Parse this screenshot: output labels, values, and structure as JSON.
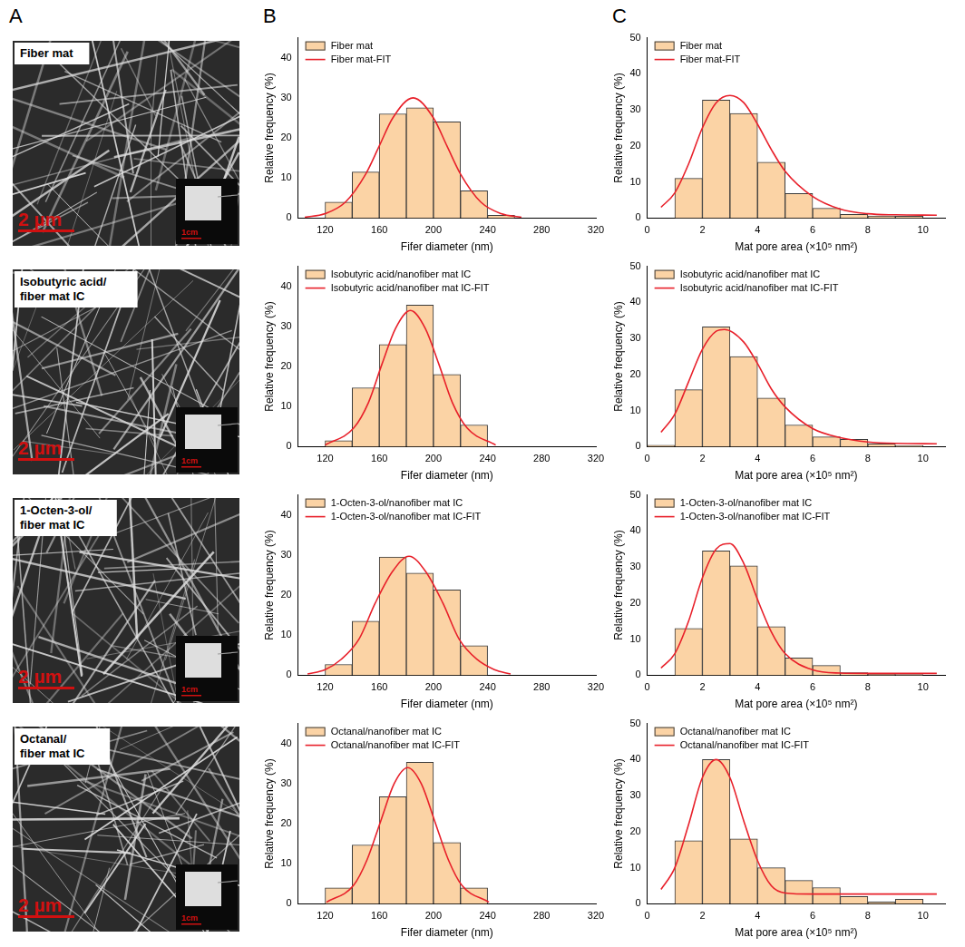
{
  "panel_letters": [
    "A",
    "B",
    "C"
  ],
  "images": [
    {
      "label": "Fiber mat",
      "scale_bar": "2 µm",
      "inset_scale_bar": "1cm"
    },
    {
      "label": "Isobutyric acid/fiber mat IC",
      "scale_bar": "2 µm",
      "inset_scale_bar": "1cm"
    },
    {
      "label": "1-Octen-3-ol/fiber mat IC",
      "scale_bar": "2 µm",
      "inset_scale_bar": "1cm"
    },
    {
      "label": "Octanal/fiber mat IC",
      "scale_bar": "2 µm",
      "inset_scale_bar": "1cm"
    }
  ],
  "chart_data": [
    {
      "type": "histogram",
      "x_label": "Fifer diameter (nm)",
      "y_label": "Relative frequency (%)",
      "bins": [
        120,
        140,
        160,
        180,
        200,
        220,
        240,
        260
      ],
      "series": [
        {
          "name": "Fiber mat",
          "type": "bar",
          "color": "#fbd3a5",
          "values": [
            4,
            11.5,
            26,
            27.5,
            24,
            6.8,
            0.7
          ]
        },
        {
          "name": "Fiber mat-FIT",
          "type": "line",
          "color": "#e8202a",
          "x": [
            105,
            120,
            135,
            150,
            160,
            170,
            185,
            200,
            210,
            220,
            235,
            250,
            265
          ],
          "values": [
            0.2,
            1.1,
            4,
            11,
            18,
            25,
            30,
            25,
            18,
            11,
            4,
            1.1,
            0.2
          ]
        }
      ],
      "xlim": [
        100,
        320
      ],
      "xticks": [
        120,
        160,
        200,
        240,
        280,
        320
      ],
      "ylim": [
        0,
        45
      ],
      "yticks": [
        0,
        10,
        20,
        30,
        40
      ],
      "grid": false,
      "legend": "top-left"
    },
    {
      "type": "histogram",
      "x_label": "Mat pore area (×10⁵ nm²)",
      "y_label": "Relative frequency (%)",
      "bins": [
        1,
        2,
        3,
        4,
        5,
        6,
        7,
        8,
        9,
        10
      ],
      "series": [
        {
          "name": "Fiber mat",
          "type": "bar",
          "color": "#fbd3a5",
          "values": [
            11,
            32.7,
            29,
            15.5,
            6.8,
            2.7,
            1,
            0.6,
            0.5
          ]
        },
        {
          "name": "Fiber mat-FIT",
          "type": "line",
          "color": "#e8202a",
          "x": [
            0.5,
            1,
            1.5,
            2,
            2.5,
            3,
            3.5,
            4,
            4.5,
            5,
            6,
            7,
            8,
            9,
            10.5
          ],
          "values": [
            3,
            7,
            15,
            25,
            32,
            34,
            32,
            26,
            19,
            13,
            6,
            2.5,
            1.2,
            0.9,
            0.8
          ]
        }
      ],
      "xlim": [
        0,
        10.8
      ],
      "xticks": [
        0,
        2,
        4,
        6,
        8,
        10
      ],
      "ylim": [
        0,
        50
      ],
      "yticks": [
        0,
        10,
        20,
        30,
        40,
        50
      ],
      "grid": false,
      "legend": "top-left"
    },
    {
      "type": "histogram",
      "x_label": "Fifer diameter (nm)",
      "y_label": "Relative frequency (%)",
      "bins": [
        120,
        140,
        160,
        180,
        200,
        220,
        240
      ],
      "series": [
        {
          "name": "Isobutyric acid/nanofiber mat IC",
          "type": "bar",
          "color": "#fbd3a5",
          "values": [
            1.5,
            14.7,
            25.5,
            35.3,
            18,
            5.4
          ]
        },
        {
          "name": "Isobutyric acid/nanofiber mat IC-FIT",
          "type": "line",
          "color": "#e8202a",
          "x": [
            120,
            141,
            152,
            162,
            172,
            183,
            194,
            204,
            214,
            225,
            246
          ],
          "values": [
            0.4,
            4.6,
            11,
            20.6,
            29.5,
            34,
            29.5,
            20.6,
            11,
            4.6,
            0.4
          ]
        }
      ],
      "xlim": [
        100,
        320
      ],
      "xticks": [
        120,
        160,
        200,
        240,
        280,
        320
      ],
      "ylim": [
        0,
        45
      ],
      "yticks": [
        0,
        10,
        20,
        30,
        40
      ],
      "grid": false,
      "legend": "top-left"
    },
    {
      "type": "histogram",
      "x_label": "Mat pore area (×10⁵ nm²)",
      "y_label": "Relative frequency (%)",
      "bins": [
        0,
        1,
        2,
        3,
        4,
        5,
        6,
        7,
        8,
        9,
        10
      ],
      "series": [
        {
          "name": "Isobutyric acid/nanofiber mat IC",
          "type": "bar",
          "color": "#fbd3a5",
          "values": [
            0.4,
            15.8,
            33.2,
            25,
            13.5,
            6,
            2.7,
            2,
            0.8,
            0.3
          ]
        },
        {
          "name": "Isobutyric acid/nanofiber mat IC-FIT",
          "type": "line",
          "color": "#e8202a",
          "x": [
            0.5,
            1,
            1.5,
            2,
            2.5,
            2.8,
            3.5,
            4,
            4.5,
            5,
            6,
            7,
            8,
            9,
            10.5
          ],
          "values": [
            4,
            9,
            18,
            27,
            32,
            32.5,
            29,
            23,
            16,
            11,
            5,
            2.5,
            1.3,
            0.9,
            0.8
          ]
        }
      ],
      "xlim": [
        0,
        10.8
      ],
      "xticks": [
        0,
        2,
        4,
        6,
        8,
        10
      ],
      "ylim": [
        0,
        50
      ],
      "yticks": [
        0,
        10,
        20,
        30,
        40,
        50
      ],
      "grid": false,
      "legend": "top-left"
    },
    {
      "type": "histogram",
      "x_label": "Fifer diameter (nm)",
      "y_label": "Relative frequency (%)",
      "bins": [
        120,
        140,
        160,
        180,
        200,
        220,
        240
      ],
      "series": [
        {
          "name": "1-Octen-3-ol/nanofiber mat IC",
          "type": "bar",
          "color": "#fbd3a5",
          "values": [
            2.7,
            13.5,
            29.5,
            25.5,
            21.3,
            7.4
          ]
        },
        {
          "name": "1-Octen-3-ol/nanofiber mat IC-FIT",
          "type": "line",
          "color": "#e8202a",
          "x": [
            107,
            120,
            132,
            145,
            157,
            170,
            182,
            194,
            207,
            219,
            232,
            245,
            257
          ],
          "values": [
            0.3,
            1.4,
            4,
            9,
            18,
            26,
            29.7,
            26,
            18,
            9,
            4,
            1.4,
            0.3
          ]
        }
      ],
      "xlim": [
        100,
        320
      ],
      "xticks": [
        120,
        160,
        200,
        240,
        280,
        320
      ],
      "ylim": [
        0,
        45
      ],
      "yticks": [
        0,
        10,
        20,
        30,
        40
      ],
      "grid": false,
      "legend": "top-left"
    },
    {
      "type": "histogram",
      "x_label": "Mat pore area (×10⁵ nm²)",
      "y_label": "Relative frequency (%)",
      "bins": [
        1,
        2,
        3,
        4,
        5,
        6,
        7,
        8,
        9,
        10
      ],
      "series": [
        {
          "name": "1-Octen-3-ol/nanofiber mat IC",
          "type": "bar",
          "color": "#fbd3a5",
          "values": [
            13,
            34.5,
            30.3,
            13.5,
            4.8,
            2.7,
            0.7,
            0.3,
            0.2
          ]
        },
        {
          "name": "1-Octen-3-ol/nanofiber mat IC-FIT",
          "type": "line",
          "color": "#e8202a",
          "x": [
            0.5,
            1,
            1.5,
            2,
            2.5,
            3,
            3.5,
            4,
            4.5,
            5,
            6,
            7,
            8,
            10.5
          ],
          "values": [
            2,
            6,
            15,
            27,
            35,
            36.5,
            31,
            21,
            12,
            6,
            1.5,
            0.6,
            0.5,
            0.5
          ]
        }
      ],
      "xlim": [
        0,
        10.8
      ],
      "xticks": [
        0,
        2,
        4,
        6,
        8,
        10
      ],
      "ylim": [
        0,
        50
      ],
      "yticks": [
        0,
        10,
        20,
        30,
        40,
        50
      ],
      "grid": false,
      "legend": "top-left"
    },
    {
      "type": "histogram",
      "x_label": "Fifer diameter (nm)",
      "y_label": "Relative frequency (%)",
      "bins": [
        120,
        140,
        160,
        180,
        200,
        220,
        240
      ],
      "series": [
        {
          "name": "Octanal/nanofiber mat IC",
          "type": "bar",
          "color": "#fbd3a5",
          "values": [
            4,
            14.7,
            26.7,
            35.3,
            15.3,
            4
          ]
        },
        {
          "name": "Octanal/nanofiber mat IC-FIT",
          "type": "line",
          "color": "#e8202a",
          "x": [
            121,
            141,
            151,
            161,
            171,
            181,
            191,
            201,
            211,
            221,
            241
          ],
          "values": [
            0.4,
            4.6,
            11,
            20.6,
            30,
            34,
            30,
            20.6,
            11,
            4.6,
            0.4
          ]
        }
      ],
      "xlim": [
        100,
        320
      ],
      "xticks": [
        120,
        160,
        200,
        240,
        280,
        320
      ],
      "ylim": [
        0,
        45
      ],
      "yticks": [
        0,
        10,
        20,
        30,
        40
      ],
      "grid": false,
      "legend": "top-left"
    },
    {
      "type": "histogram",
      "x_label": "Mat pore area (×10⁵ nm²)",
      "y_label": "Relative frequency (%)",
      "bins": [
        1,
        2,
        3,
        4,
        5,
        6,
        7,
        8,
        9,
        10
      ],
      "series": [
        {
          "name": "Octanal/nanofiber mat IC",
          "type": "bar",
          "color": "#fbd3a5",
          "values": [
            17.5,
            40,
            18,
            10,
            6.5,
            4.5,
            2,
            0.5,
            1.3
          ]
        },
        {
          "name": "Octanal/nanofiber mat IC-FIT",
          "type": "line",
          "color": "#e8202a",
          "x": [
            0.5,
            1,
            1.5,
            2,
            2.5,
            3,
            3.5,
            4,
            4.5,
            5,
            6,
            7,
            8,
            10.5
          ],
          "values": [
            4,
            10,
            22,
            35,
            40,
            35,
            23,
            12,
            5,
            3,
            2.7,
            2.7,
            2.7,
            2.7
          ]
        }
      ],
      "xlim": [
        0,
        10.8
      ],
      "xticks": [
        0,
        2,
        4,
        6,
        8,
        10
      ],
      "ylim": [
        0,
        50
      ],
      "yticks": [
        0,
        10,
        20,
        30,
        40,
        50
      ],
      "grid": false,
      "legend": "top-left"
    }
  ]
}
